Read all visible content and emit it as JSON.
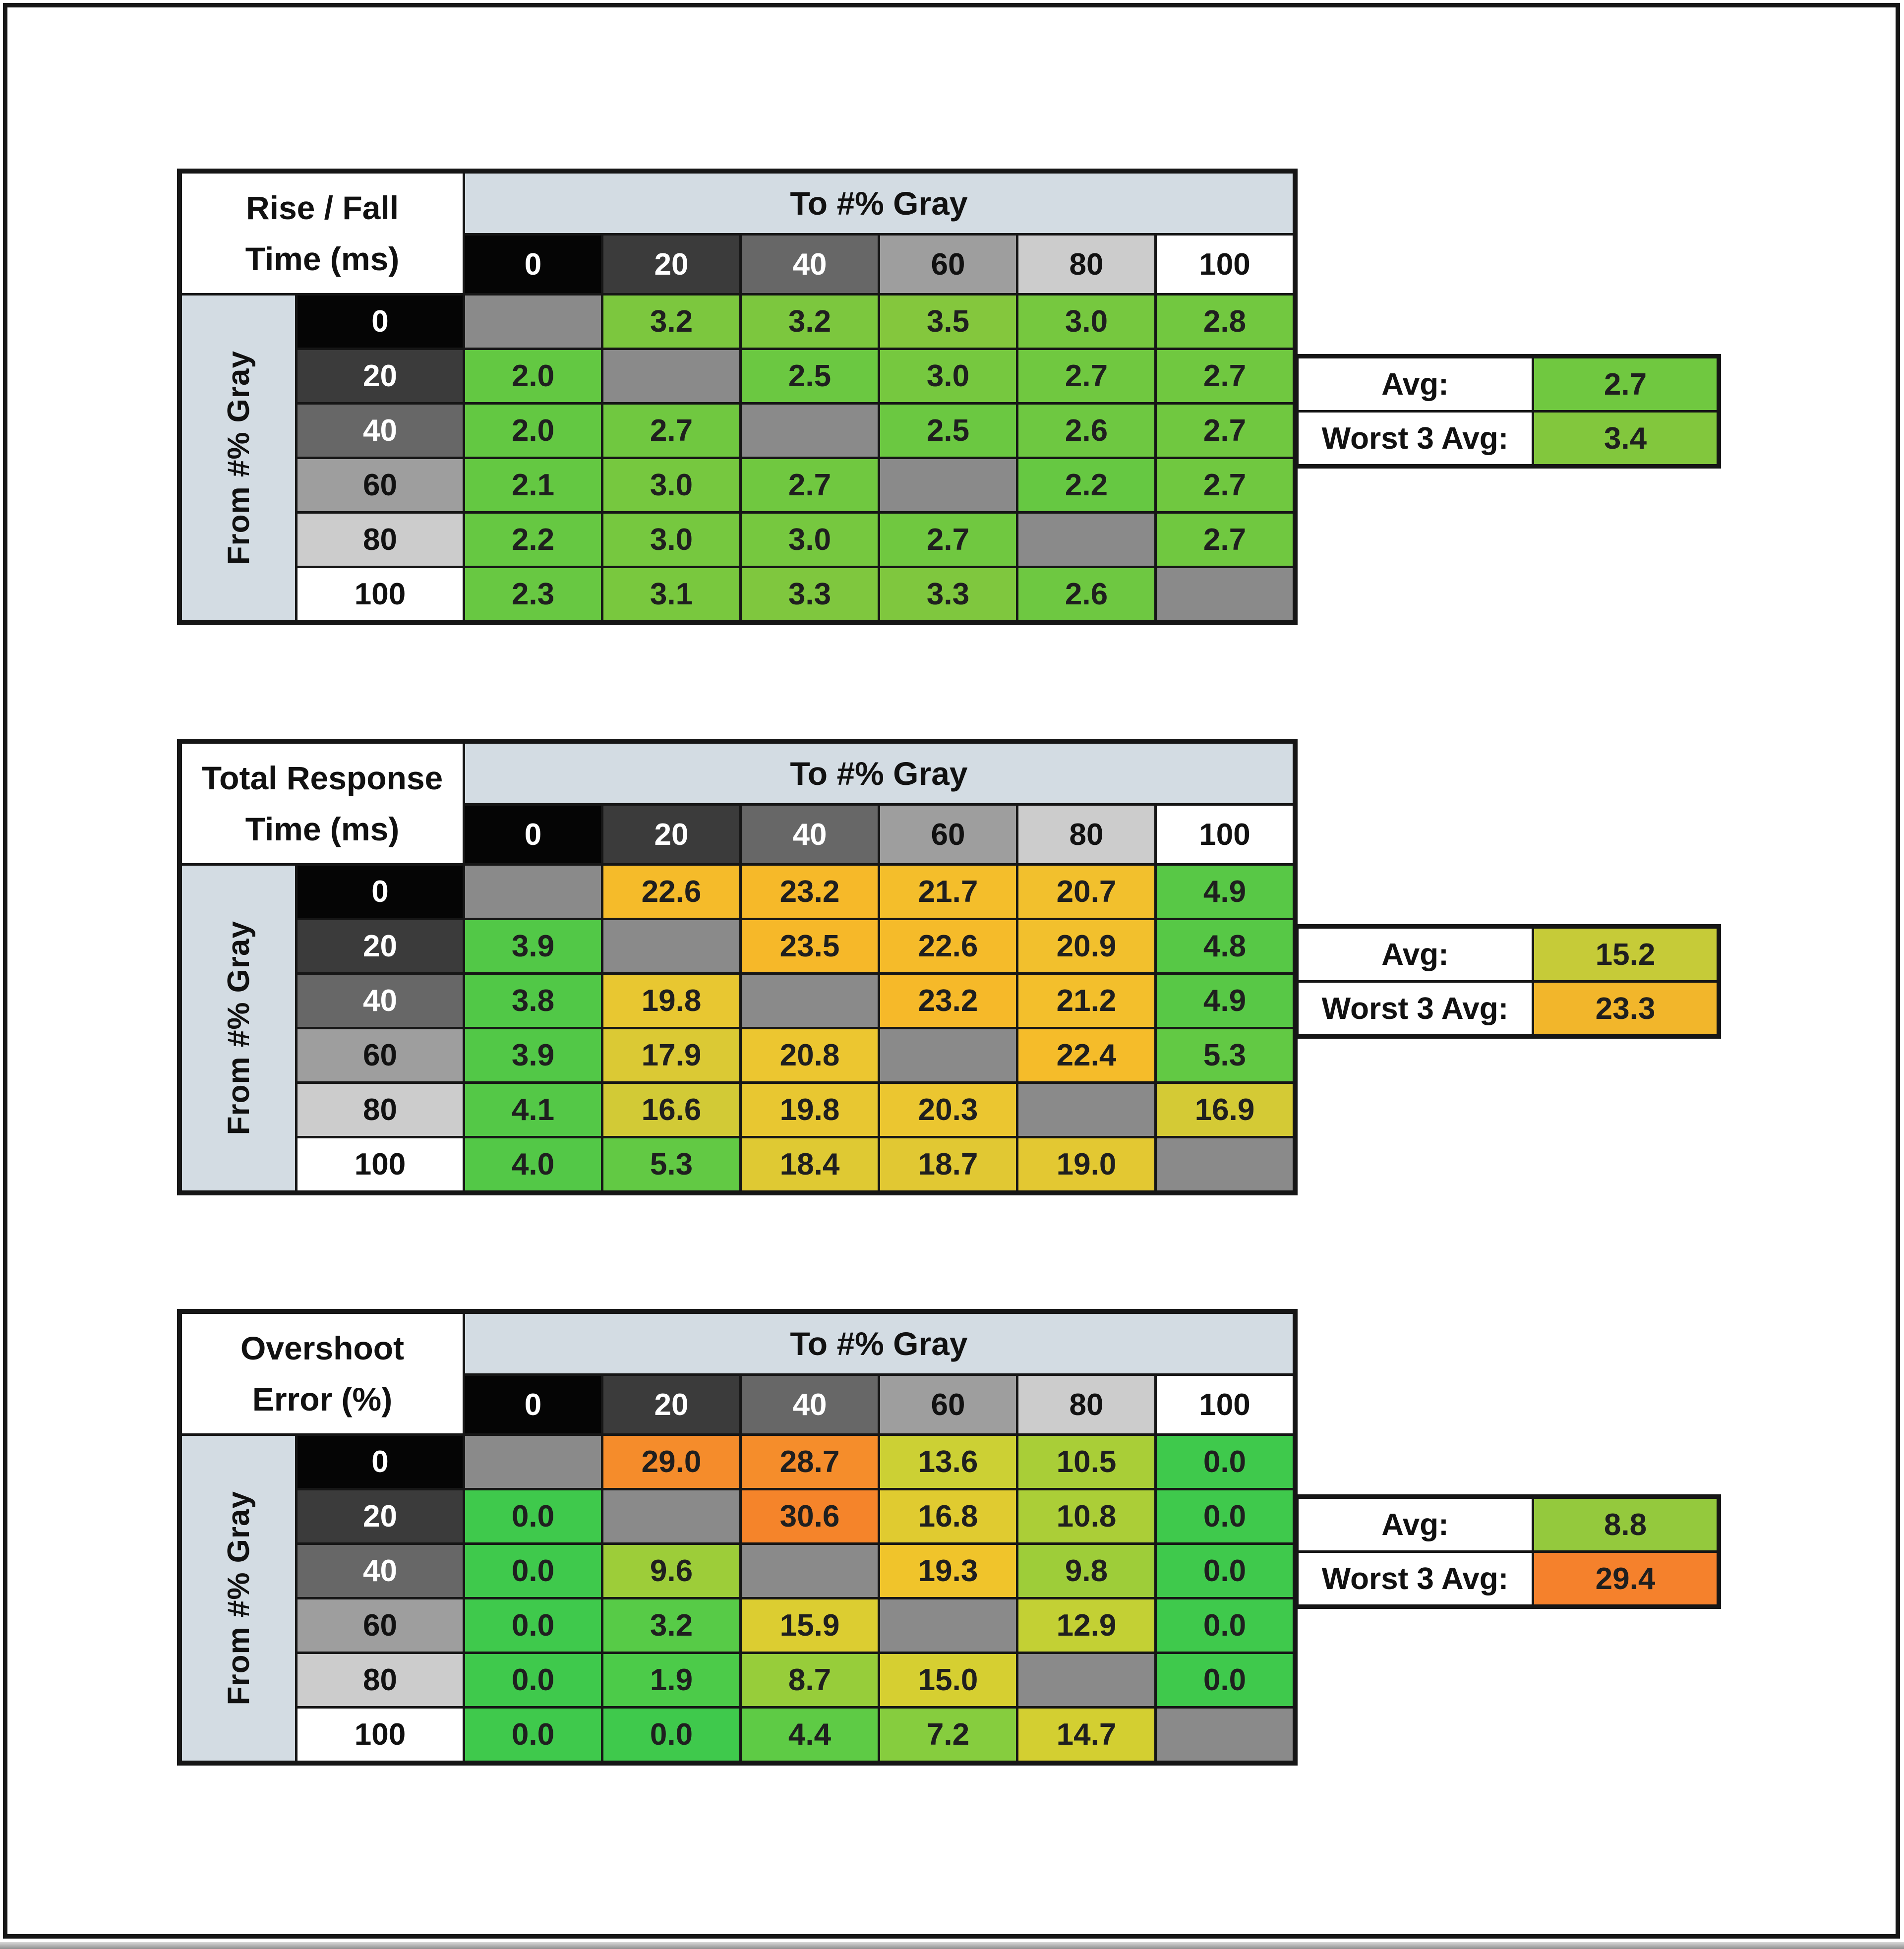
{
  "page": {
    "background": "#ffffff",
    "frame_border_color": "#161616",
    "bottom_strip_color": "#b0b0b0"
  },
  "shared": {
    "col_header_label": "To #% Gray",
    "row_header_label": "From #% Gray",
    "gray_levels": [
      "0",
      "20",
      "40",
      "60",
      "80",
      "100"
    ],
    "header_band_color": "#d3dce3",
    "diagonal_color": "#8a8a8a",
    "grid_color": "#161616",
    "level_colors": [
      {
        "bg": "#050505",
        "fg": "#ffffff"
      },
      {
        "bg": "#3b3b3b",
        "fg": "#ffffff"
      },
      {
        "bg": "#676767",
        "fg": "#ffffff"
      },
      {
        "bg": "#9e9e9e",
        "fg": "#111111"
      },
      {
        "bg": "#cccccc",
        "fg": "#111111"
      },
      {
        "bg": "#ffffff",
        "fg": "#111111"
      }
    ],
    "avg_label": "Avg:",
    "worst_label": "Worst 3 Avg:"
  },
  "tables": [
    {
      "id": "rise-fall-time",
      "title_line1": "Rise / Fall",
      "title_line2": "Time (ms)",
      "cells": [
        [
          null,
          {
            "v": "3.2",
            "c": "#7cc73e"
          },
          {
            "v": "3.2",
            "c": "#7cc73e"
          },
          {
            "v": "3.5",
            "c": "#84c73d"
          },
          {
            "v": "3.0",
            "c": "#76c83f"
          },
          {
            "v": "2.8",
            "c": "#72c840"
          }
        ],
        [
          {
            "v": "2.0",
            "c": "#63c842"
          },
          null,
          {
            "v": "2.5",
            "c": "#6bc841"
          },
          {
            "v": "3.0",
            "c": "#76c83f"
          },
          {
            "v": "2.7",
            "c": "#70c840"
          },
          {
            "v": "2.7",
            "c": "#70c840"
          }
        ],
        [
          {
            "v": "2.0",
            "c": "#63c842"
          },
          {
            "v": "2.7",
            "c": "#70c840"
          },
          null,
          {
            "v": "2.5",
            "c": "#6bc841"
          },
          {
            "v": "2.6",
            "c": "#6ec841"
          },
          {
            "v": "2.7",
            "c": "#70c840"
          }
        ],
        [
          {
            "v": "2.1",
            "c": "#64c842"
          },
          {
            "v": "3.0",
            "c": "#76c83f"
          },
          {
            "v": "2.7",
            "c": "#70c840"
          },
          null,
          {
            "v": "2.2",
            "c": "#66c842"
          },
          {
            "v": "2.7",
            "c": "#70c840"
          }
        ],
        [
          {
            "v": "2.2",
            "c": "#66c842"
          },
          {
            "v": "3.0",
            "c": "#76c83f"
          },
          {
            "v": "3.0",
            "c": "#76c83f"
          },
          {
            "v": "2.7",
            "c": "#70c840"
          },
          null,
          {
            "v": "2.7",
            "c": "#70c840"
          }
        ],
        [
          {
            "v": "2.3",
            "c": "#68c842"
          },
          {
            "v": "3.1",
            "c": "#79c83e"
          },
          {
            "v": "3.3",
            "c": "#7fc73e"
          },
          {
            "v": "3.3",
            "c": "#7fc73e"
          },
          {
            "v": "2.6",
            "c": "#6ec841"
          },
          null
        ]
      ],
      "avg": {
        "value": "2.7",
        "color": "#70c840"
      },
      "worst3": {
        "value": "3.4",
        "color": "#82c73d"
      }
    },
    {
      "id": "total-response-time",
      "title_line1": "Total Response",
      "title_line2": "Time (ms)",
      "cells": [
        [
          null,
          {
            "v": "22.6",
            "c": "#f5bb2a"
          },
          {
            "v": "23.2",
            "c": "#f6b929"
          },
          {
            "v": "21.7",
            "c": "#f4be2b"
          },
          {
            "v": "20.7",
            "c": "#f2c02d"
          },
          {
            "v": "4.9",
            "c": "#58c846"
          }
        ],
        [
          {
            "v": "3.9",
            "c": "#52c847"
          },
          null,
          {
            "v": "23.5",
            "c": "#f6b829"
          },
          {
            "v": "22.6",
            "c": "#f5bb2a"
          },
          {
            "v": "20.9",
            "c": "#f2c02d"
          },
          {
            "v": "4.8",
            "c": "#57c846"
          }
        ],
        [
          {
            "v": "3.8",
            "c": "#51c847"
          },
          {
            "v": "19.8",
            "c": "#e8c731"
          },
          null,
          {
            "v": "23.2",
            "c": "#f6b929"
          },
          {
            "v": "21.2",
            "c": "#f3bf2c"
          },
          {
            "v": "4.9",
            "c": "#58c846"
          }
        ],
        [
          {
            "v": "3.9",
            "c": "#52c847"
          },
          {
            "v": "17.9",
            "c": "#dbc934"
          },
          {
            "v": "20.8",
            "c": "#ecc630"
          },
          null,
          {
            "v": "22.4",
            "c": "#f5bc2a"
          },
          {
            "v": "5.3",
            "c": "#62c944"
          }
        ],
        [
          {
            "v": "4.1",
            "c": "#54c847"
          },
          {
            "v": "16.6",
            "c": "#d2ca36"
          },
          {
            "v": "19.8",
            "c": "#e8c731"
          },
          {
            "v": "20.3",
            "c": "#ebc630"
          },
          null,
          {
            "v": "16.9",
            "c": "#d4ca35"
          }
        ],
        [
          {
            "v": "4.0",
            "c": "#53c847"
          },
          {
            "v": "5.3",
            "c": "#62c944"
          },
          {
            "v": "18.4",
            "c": "#dfc933"
          },
          {
            "v": "18.7",
            "c": "#e1c833"
          },
          {
            "v": "19.0",
            "c": "#e3c832"
          },
          null
        ]
      ],
      "avg": {
        "value": "15.2",
        "color": "#c6cb38"
      },
      "worst3": {
        "value": "23.3",
        "color": "#f2b62b"
      }
    },
    {
      "id": "overshoot-error",
      "title_line1": "Overshoot",
      "title_line2": "Error (%)",
      "cells": [
        [
          null,
          {
            "v": "29.0",
            "c": "#f58c2b"
          },
          {
            "v": "28.7",
            "c": "#f58d2b"
          },
          {
            "v": "13.6",
            "c": "#ccd034"
          },
          {
            "v": "10.5",
            "c": "#a9ce37"
          },
          {
            "v": "0.0",
            "c": "#3fc94c"
          }
        ],
        [
          {
            "v": "0.0",
            "c": "#3fc94c"
          },
          null,
          {
            "v": "30.6",
            "c": "#f5842a"
          },
          {
            "v": "16.8",
            "c": "#e0cb30"
          },
          {
            "v": "10.8",
            "c": "#abce37"
          },
          {
            "v": "0.0",
            "c": "#3fc94c"
          }
        ],
        [
          {
            "v": "0.0",
            "c": "#3fc94c"
          },
          {
            "v": "9.6",
            "c": "#9dcd39"
          },
          null,
          {
            "v": "19.3",
            "c": "#f0c42b"
          },
          {
            "v": "9.8",
            "c": "#9ecd39"
          },
          {
            "v": "0.0",
            "c": "#3fc94c"
          }
        ],
        [
          {
            "v": "0.0",
            "c": "#3fc94c"
          },
          {
            "v": "3.2",
            "c": "#57cb47"
          },
          {
            "v": "15.9",
            "c": "#dccd31"
          },
          null,
          {
            "v": "12.9",
            "c": "#c3d034"
          },
          {
            "v": "0.0",
            "c": "#3fc94c"
          }
        ],
        [
          {
            "v": "0.0",
            "c": "#3fc94c"
          },
          {
            "v": "1.9",
            "c": "#4ccb49"
          },
          {
            "v": "8.7",
            "c": "#97cd3a"
          },
          {
            "v": "15.0",
            "c": "#d6cf31"
          },
          null,
          {
            "v": "0.0",
            "c": "#3fc94c"
          }
        ],
        [
          {
            "v": "0.0",
            "c": "#3fc94c"
          },
          {
            "v": "0.0",
            "c": "#3fc94c"
          },
          {
            "v": "4.4",
            "c": "#5ecb45"
          },
          {
            "v": "7.2",
            "c": "#86cd3e"
          },
          {
            "v": "14.7",
            "c": "#d3cf31"
          },
          null
        ]
      ],
      "avg": {
        "value": "8.8",
        "color": "#94c93d"
      },
      "worst3": {
        "value": "29.4",
        "color": "#f5812c"
      }
    }
  ],
  "chart_data": [
    {
      "type": "heatmap",
      "title": "Rise / Fall Time (ms)",
      "xlabel": "To #% Gray",
      "ylabel": "From #% Gray",
      "categories": [
        0,
        20,
        40,
        60,
        80,
        100
      ],
      "rows": [
        [
          null,
          3.2,
          3.2,
          3.5,
          3.0,
          2.8
        ],
        [
          2.0,
          null,
          2.5,
          3.0,
          2.7,
          2.7
        ],
        [
          2.0,
          2.7,
          null,
          2.5,
          2.6,
          2.7
        ],
        [
          2.1,
          3.0,
          2.7,
          null,
          2.2,
          2.7
        ],
        [
          2.2,
          3.0,
          3.0,
          2.7,
          null,
          2.7
        ],
        [
          2.3,
          3.1,
          3.3,
          3.3,
          2.6,
          null
        ]
      ],
      "summary": {
        "avg": 2.7,
        "worst_3_avg": 3.4
      },
      "legend_position": "none",
      "grid": true
    },
    {
      "type": "heatmap",
      "title": "Total Response Time (ms)",
      "xlabel": "To #% Gray",
      "ylabel": "From #% Gray",
      "categories": [
        0,
        20,
        40,
        60,
        80,
        100
      ],
      "rows": [
        [
          null,
          22.6,
          23.2,
          21.7,
          20.7,
          4.9
        ],
        [
          3.9,
          null,
          23.5,
          22.6,
          20.9,
          4.8
        ],
        [
          3.8,
          19.8,
          null,
          23.2,
          21.2,
          4.9
        ],
        [
          3.9,
          17.9,
          20.8,
          null,
          22.4,
          5.3
        ],
        [
          4.1,
          16.6,
          19.8,
          20.3,
          null,
          16.9
        ],
        [
          4.0,
          5.3,
          18.4,
          18.7,
          19.0,
          null
        ]
      ],
      "summary": {
        "avg": 15.2,
        "worst_3_avg": 23.3
      },
      "legend_position": "none",
      "grid": true
    },
    {
      "type": "heatmap",
      "title": "Overshoot Error (%)",
      "xlabel": "To #% Gray",
      "ylabel": "From #% Gray",
      "categories": [
        0,
        20,
        40,
        60,
        80,
        100
      ],
      "rows": [
        [
          null,
          29.0,
          28.7,
          13.6,
          10.5,
          0.0
        ],
        [
          0.0,
          null,
          30.6,
          16.8,
          10.8,
          0.0
        ],
        [
          0.0,
          9.6,
          null,
          19.3,
          9.8,
          0.0
        ],
        [
          0.0,
          3.2,
          15.9,
          null,
          12.9,
          0.0
        ],
        [
          0.0,
          1.9,
          8.7,
          15.0,
          null,
          0.0
        ],
        [
          0.0,
          0.0,
          4.4,
          7.2,
          14.7,
          null
        ]
      ],
      "summary": {
        "avg": 8.8,
        "worst_3_avg": 29.4
      },
      "legend_position": "none",
      "grid": true
    }
  ]
}
